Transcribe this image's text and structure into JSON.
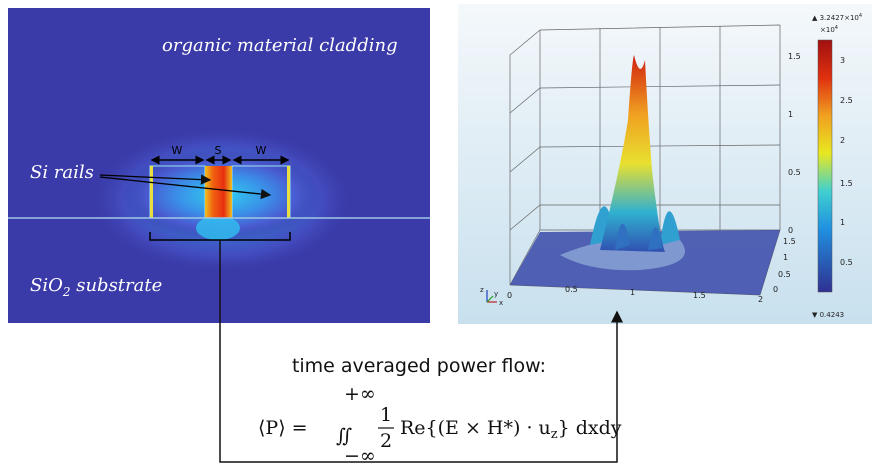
{
  "left_panel": {
    "cladding_label": "organic material cladding",
    "rails_label": "Si rails",
    "substrate_label": {
      "main": "SiO",
      "sub": "2",
      "rest": " substrate"
    },
    "dimensions": [
      "W",
      "S",
      "W"
    ]
  },
  "right_panel": {
    "z_ticks": [
      "1.5",
      "1",
      "0.5",
      "0"
    ],
    "y_ticks": [
      "1.5",
      "1",
      "0.5",
      "0"
    ],
    "x_ticks": [
      "0",
      "0.5",
      "1",
      "1.5",
      "2"
    ],
    "axis_labels": [
      "z",
      "y",
      "x"
    ],
    "colorbar": {
      "max_label": "▲ 3.2427×10",
      "max_exp": "4",
      "multiplier": "×10",
      "multiplier_exp": "4",
      "ticks": [
        "3",
        "2.5",
        "2",
        "1.5",
        "1",
        "0.5"
      ],
      "min_label": "▼ 0.4243"
    }
  },
  "caption": {
    "title": "time averaged power flow:",
    "lhs": "⟨P⟩ =",
    "integral": "∬",
    "upper": "+∞",
    "lower": "−∞",
    "numerator": "1",
    "denominator": "2",
    "body": "Re{(E × H*) · u",
    "body_sub": "z",
    "tail": "} dxdy"
  }
}
